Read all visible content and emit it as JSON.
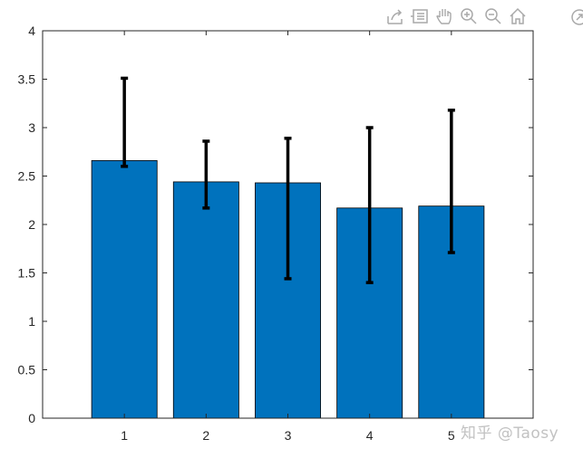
{
  "toolbar": {
    "icons": [
      "export-icon",
      "data-tips-icon",
      "pan-icon",
      "zoom-in-icon",
      "zoom-out-icon",
      "home-icon",
      "rotate-icon"
    ]
  },
  "watermark": "知乎 @Taosy",
  "colors": {
    "bar": "#0072BD",
    "bar_edge": "#000000",
    "error_bar": "#000000",
    "axis": "#262626"
  },
  "chart_data": {
    "type": "bar",
    "title": "",
    "xlabel": "",
    "ylabel": "",
    "categories": [
      "1",
      "2",
      "3",
      "4",
      "5"
    ],
    "values": [
      2.66,
      2.44,
      2.43,
      2.17,
      2.19
    ],
    "error_bars": [
      {
        "low": 2.6,
        "high": 3.51
      },
      {
        "low": 2.17,
        "high": 2.86
      },
      {
        "low": 1.44,
        "high": 2.89
      },
      {
        "low": 1.4,
        "high": 3.0
      },
      {
        "low": 1.71,
        "high": 3.18
      }
    ],
    "xlim": [
      0,
      6
    ],
    "ylim": [
      0,
      4
    ],
    "yticks": [
      "0",
      "0.5",
      "1",
      "1.5",
      "2",
      "2.5",
      "3",
      "3.5",
      "4"
    ],
    "grid": false,
    "legend": "none"
  }
}
